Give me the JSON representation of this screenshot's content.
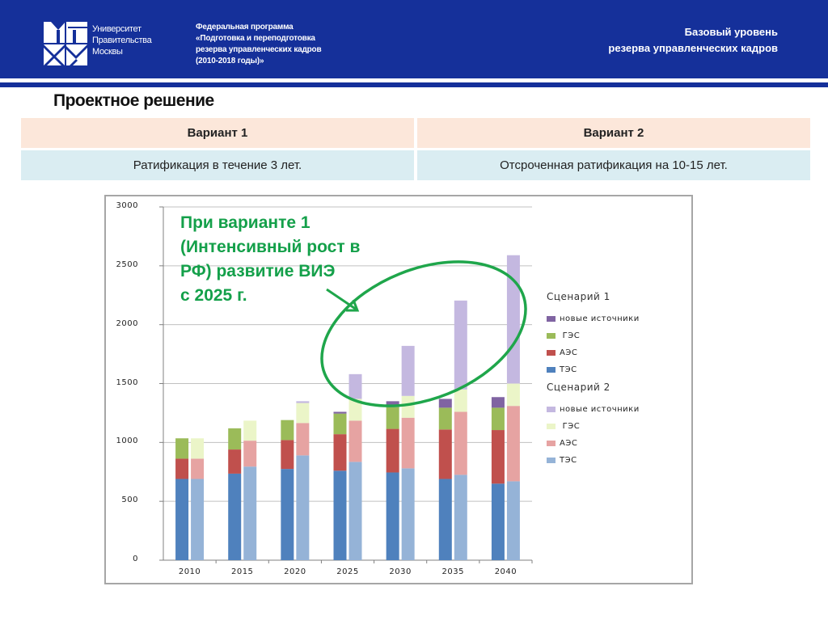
{
  "header": {
    "university_name": [
      "Университет",
      "Правительства",
      "Москвы"
    ],
    "program_lines": [
      "Федеральная программа",
      "«Подготовка и переподготовка",
      "резерва управленческих кадров",
      "(2010-2018 годы)»"
    ],
    "level_lines": [
      "Базовый уровень",
      "резерва управленческих кадров"
    ],
    "colors": {
      "header_bg": "#15309a"
    }
  },
  "section": {
    "title": "Проектное решение"
  },
  "options_table": {
    "headers": [
      "Вариант 1",
      "Вариант 2"
    ],
    "descriptions": [
      "Ратификация в течение 3  лет.",
      "Отсроченная ратификация на 10-15 лет."
    ],
    "colors": {
      "header_bg": "#fce7da",
      "body_bg": "#daedf2"
    }
  },
  "annotation": {
    "lines": [
      "При варианте 1",
      "(Интенсивный рост в",
      "РФ) развитие ВИЭ",
      "с 2025 г."
    ],
    "color": "#14a04a"
  },
  "chart_data": {
    "type": "bar",
    "stacked": true,
    "title": "",
    "xlabel": "",
    "ylabel": "",
    "ylim": [
      0,
      3000
    ],
    "yticks": [
      0,
      500,
      1000,
      1500,
      2000,
      2500,
      3000
    ],
    "grid": true,
    "legend_position": "right",
    "categories": [
      "2010",
      "2015",
      "2020",
      "2025",
      "2030",
      "2035",
      "2040"
    ],
    "groups": [
      {
        "name": "Сценарий 1",
        "series": [
          {
            "name": "ТЭС",
            "color": "#4f81bd",
            "values": [
              690,
              735,
              775,
              760,
              745,
              690,
              650
            ]
          },
          {
            "name": "АЭС",
            "color": "#c0504d",
            "values": [
              172,
              205,
              245,
              310,
              370,
              420,
              455
            ]
          },
          {
            "name": "ГЭС",
            "color": "#9bbb59",
            "values": [
              173,
              180,
              170,
              175,
              185,
              185,
              190
            ]
          },
          {
            "name": "новые источники",
            "color": "#8064a2",
            "values": [
              0,
              0,
              0,
              15,
              50,
              75,
              90
            ]
          }
        ]
      },
      {
        "name": "Сценарий 2",
        "series": [
          {
            "name": "ТЭС",
            "color": "#95b3d7",
            "values": [
              690,
              795,
              890,
              835,
              780,
              725,
              670
            ]
          },
          {
            "name": "АЭС",
            "color": "#e6a3a2",
            "values": [
              172,
              220,
              275,
              350,
              430,
              535,
              640
            ]
          },
          {
            "name": "ГЭС",
            "color": "#ebf5c8",
            "values": [
              173,
              170,
              170,
              185,
              185,
              190,
              190
            ]
          },
          {
            "name": "новые источники",
            "color": "#c4b8e0",
            "values": [
              0,
              0,
              15,
              210,
              425,
              755,
              1090
            ]
          }
        ]
      }
    ],
    "legend": {
      "groups": [
        {
          "title": "Сценарий 1",
          "items": [
            "новые источники",
            "ГЭС",
            "АЭС",
            "ТЭС"
          ]
        },
        {
          "title": "Сценарий 2",
          "items": [
            "новые источники",
            "ГЭС",
            "АЭС",
            "ТЭС"
          ]
        }
      ]
    },
    "annotations": [
      "При варианте 1 (Интенсивный рост в РФ) развитие ВИЭ с 2025 г."
    ]
  }
}
